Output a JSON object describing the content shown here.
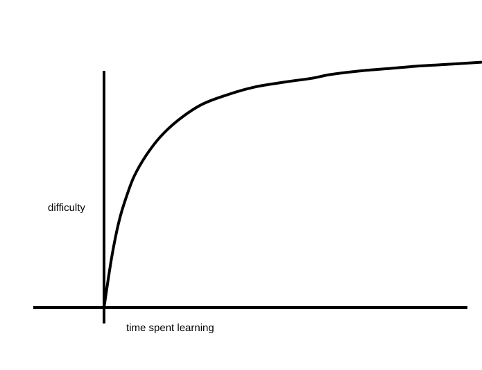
{
  "chart_data": {
    "type": "line",
    "title": "",
    "xlabel": "time spent learning",
    "ylabel": "difficulty",
    "grid": false,
    "legend": "none",
    "ticks": "none",
    "series": [
      {
        "color": "#000000",
        "x": [
          0,
          0.02,
          0.04,
          0.06,
          0.08,
          0.11,
          0.15,
          0.2,
          0.26,
          0.33,
          0.4,
          0.48,
          0.55,
          0.6,
          0.68,
          0.76,
          0.84,
          0.92,
          1.0
        ],
        "y": [
          0,
          0.2,
          0.35,
          0.45,
          0.53,
          0.61,
          0.69,
          0.76,
          0.82,
          0.86,
          0.89,
          0.91,
          0.925,
          0.94,
          0.955,
          0.965,
          0.975,
          0.982,
          0.99
        ]
      }
    ]
  }
}
